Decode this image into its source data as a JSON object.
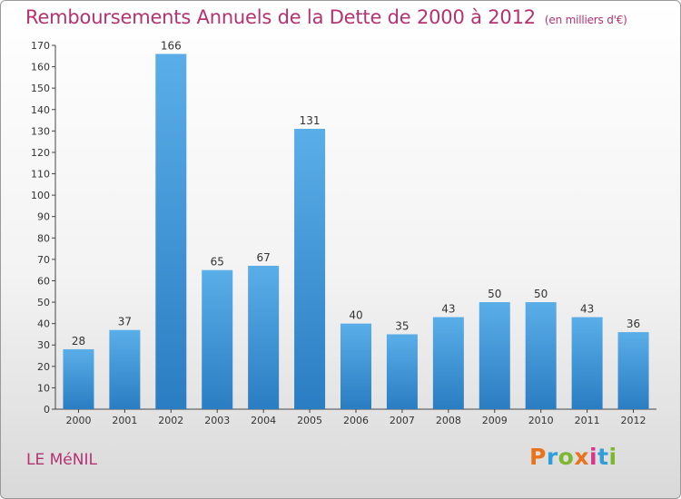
{
  "header": {
    "title": "Remboursements Annuels de la Dette de 2000 à 2012",
    "unit": "(en milliers d'€)"
  },
  "footer": {
    "place": "LE MéNIL",
    "logo": "Proxiti",
    "logo_colors": [
      "#e8731c",
      "#2e9fd8",
      "#7cb82f",
      "#e8731c",
      "#d9368b",
      "#2e9fd8",
      "#7cb82f"
    ]
  },
  "chart_data": {
    "type": "bar",
    "title": "Remboursements Annuels de la Dette de 2000 à 2012",
    "categories": [
      "2000",
      "2001",
      "2002",
      "2003",
      "2004",
      "2005",
      "2006",
      "2007",
      "2008",
      "2009",
      "2010",
      "2011",
      "2012"
    ],
    "values": [
      28,
      37,
      166,
      65,
      67,
      131,
      40,
      35,
      43,
      50,
      50,
      43,
      36
    ],
    "ylim": [
      0,
      170
    ],
    "ytick_step": 10,
    "grid": false,
    "bar_color_top": "#5aaee8",
    "bar_color_bottom": "#2a7dc2"
  }
}
